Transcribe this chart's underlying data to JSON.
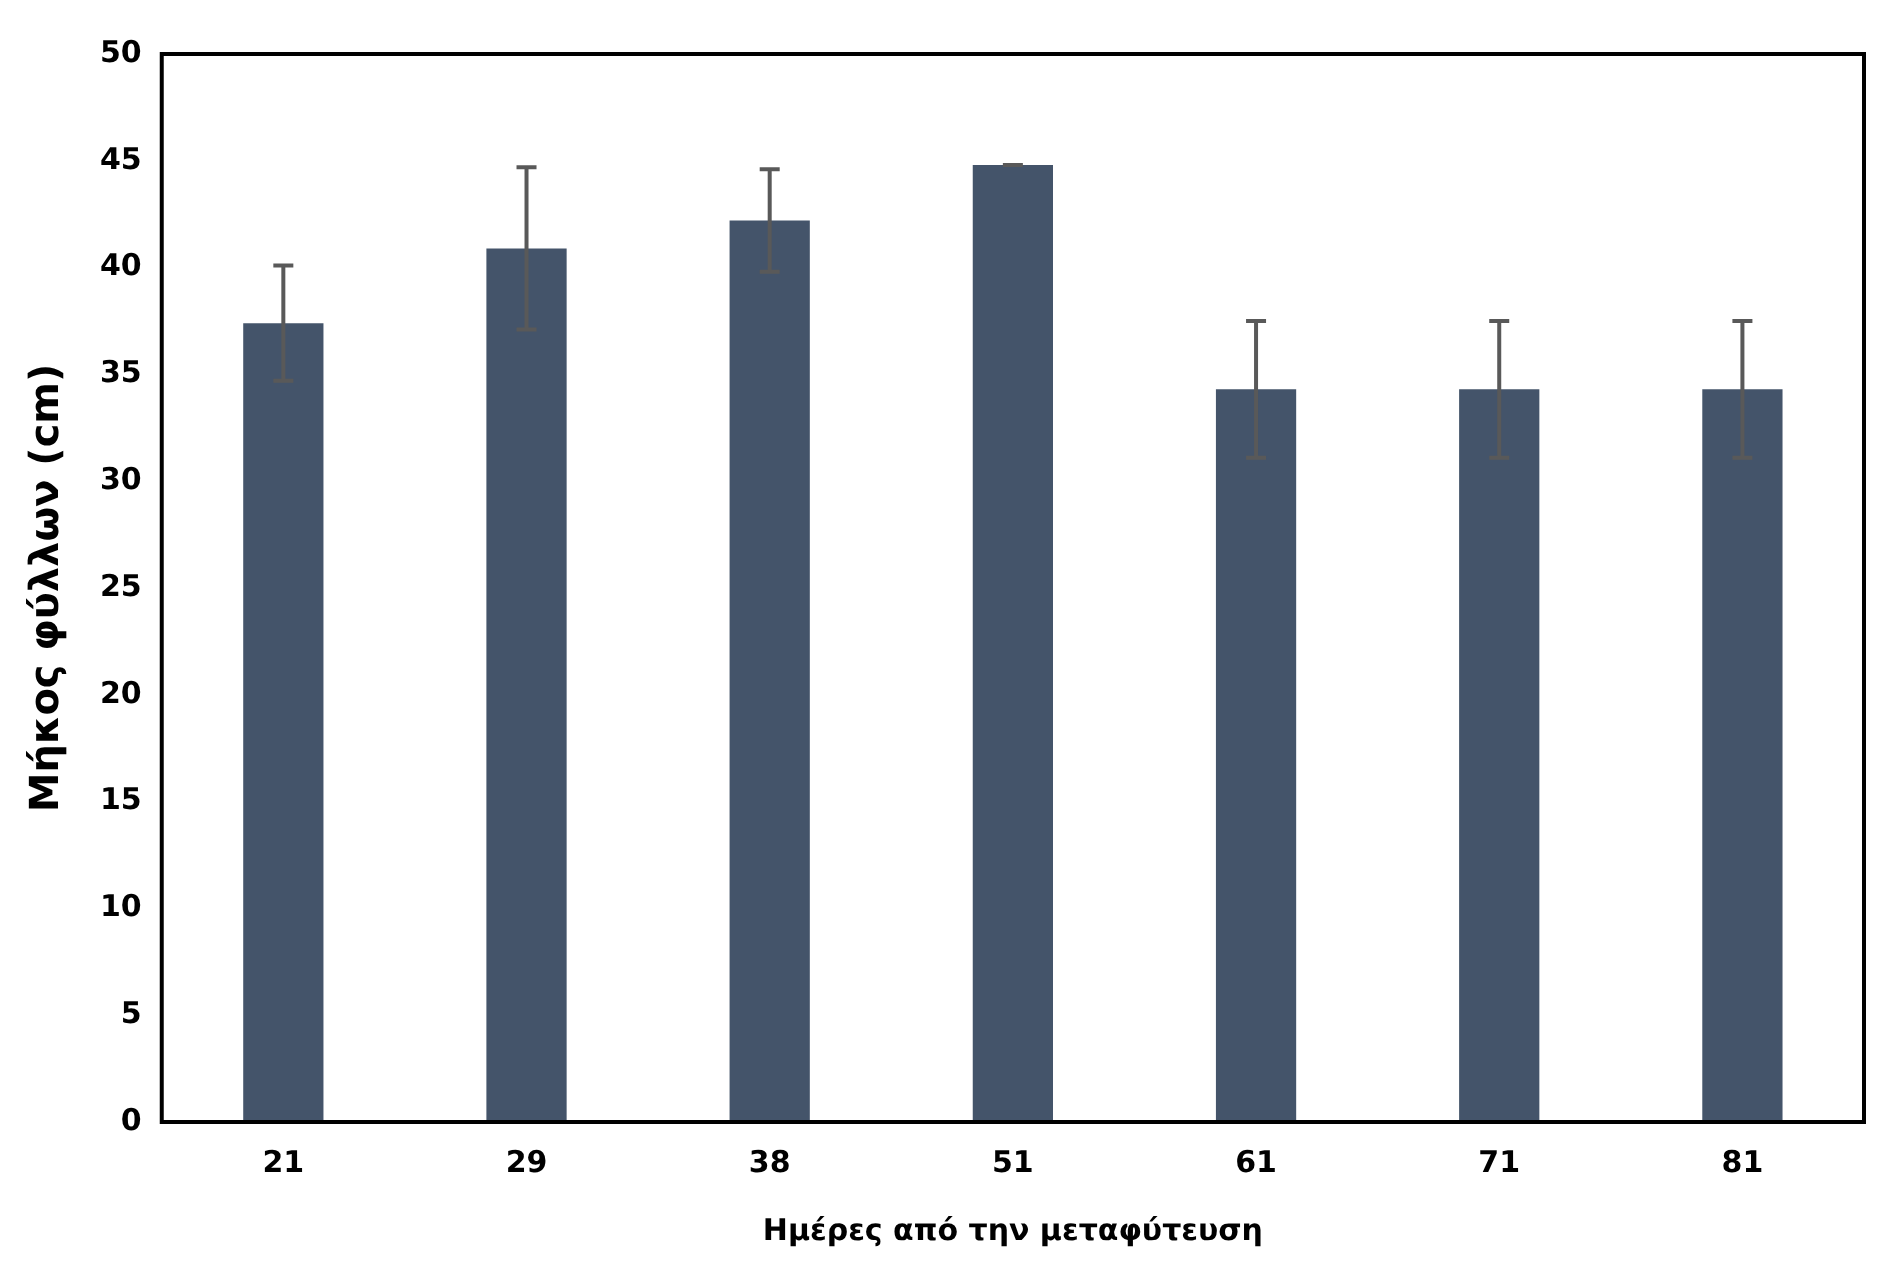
{
  "chart_data": {
    "type": "bar",
    "xlabel": "Ημέρες από την μεταφύτευση",
    "ylabel": "Μήκος φύλλων (cm)",
    "categories": [
      "21",
      "29",
      "38",
      "51",
      "61",
      "71",
      "81"
    ],
    "series": [
      {
        "color": "#44546a",
        "values": [
          37.4,
          40.9,
          42.2,
          44.8,
          34.3,
          34.3,
          34.3
        ],
        "errors": [
          2.7,
          3.8,
          2.4,
          0,
          3.2,
          3.2,
          3.2
        ]
      }
    ],
    "ylim": [
      0,
      50
    ],
    "yticks": [
      0,
      5,
      10,
      15,
      20,
      25,
      30,
      35,
      40,
      45,
      50
    ],
    "grid": false,
    "legend": false
  }
}
